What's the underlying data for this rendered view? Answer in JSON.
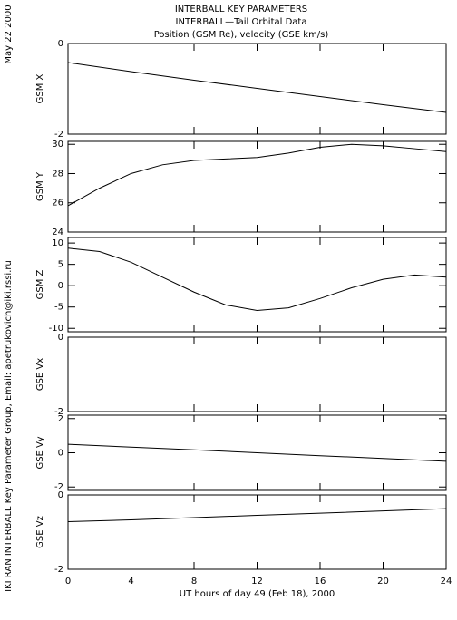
{
  "header": {
    "title_lines": [
      "INTERBALL KEY PARAMETERS",
      "INTERBALL—Tail Orbital Data",
      "Position (GSM Re), velocity (GSE km/s)"
    ],
    "date": "May 22 2000",
    "credit": "IKI RAN INTERBALL Key Parameter Group, Email: apetrukovich@iki.rssi.ru"
  },
  "chart_data": [
    {
      "type": "line",
      "ylabel": "GSM X",
      "ylim": [
        -2,
        0
      ],
      "yticks": [
        -2,
        0
      ],
      "xlim": [
        0,
        24
      ],
      "xticks": [
        0,
        4,
        8,
        12,
        16,
        20,
        24
      ],
      "color": "#000000",
      "x": [
        0,
        4,
        8,
        12,
        16,
        20,
        24
      ],
      "values": [
        -0.42,
        -0.62,
        -0.81,
        -0.99,
        -1.17,
        -1.35,
        -1.52
      ]
    },
    {
      "type": "line",
      "ylabel": "GSM Y",
      "ylim": [
        24,
        30.2
      ],
      "yticks": [
        24,
        26,
        28,
        30
      ],
      "xlim": [
        0,
        24
      ],
      "xticks": [
        0,
        4,
        8,
        12,
        16,
        20,
        24
      ],
      "color": "#000000",
      "x": [
        0,
        2,
        4,
        6,
        8,
        10,
        12,
        14,
        16,
        18,
        20,
        22,
        24
      ],
      "values": [
        25.8,
        27,
        28,
        28.6,
        28.9,
        29,
        29.1,
        29.4,
        29.8,
        30,
        29.9,
        29.7,
        29.5
      ]
    },
    {
      "type": "line",
      "ylabel": "GSM Z",
      "ylim": [
        -10.8,
        11.3
      ],
      "yticks": [
        -10,
        -5,
        0,
        5,
        10
      ],
      "xlim": [
        0,
        24
      ],
      "xticks": [
        0,
        4,
        8,
        12,
        16,
        20,
        24
      ],
      "color": "#000000",
      "x": [
        0,
        2,
        4,
        6,
        8,
        10,
        12,
        14,
        16,
        18,
        20,
        22,
        24
      ],
      "values": [
        8.8,
        8,
        5.5,
        2,
        -1.5,
        -4.5,
        -5.8,
        -5.2,
        -3,
        -0.5,
        1.5,
        2.5,
        2
      ]
    },
    {
      "type": "line",
      "ylabel": "GSE Vx",
      "ylim": [
        -2,
        0
      ],
      "yticks": [
        -2,
        0
      ],
      "xlim": [
        0,
        24
      ],
      "xticks": [
        0,
        4,
        8,
        12,
        16,
        20,
        24
      ]
    },
    {
      "type": "line",
      "ylabel": "GSE Vy",
      "ylim": [
        -2.2,
        2.2
      ],
      "yticks": [
        -2,
        0,
        2
      ],
      "xlim": [
        0,
        24
      ],
      "xticks": [
        0,
        4,
        8,
        12,
        16,
        20,
        24
      ],
      "color": "#000000",
      "x": [
        0,
        4,
        8,
        12,
        16,
        20,
        24
      ],
      "values": [
        0.5,
        0.33,
        0.17,
        0,
        -0.17,
        -0.33,
        -0.5
      ]
    },
    {
      "type": "line",
      "ylabel": "GSE Vz",
      "ylim": [
        -2,
        0
      ],
      "yticks": [
        -2,
        0
      ],
      "xlim": [
        0,
        24
      ],
      "xticks": [
        0,
        4,
        8,
        12,
        16,
        20,
        24
      ],
      "color": "#000000",
      "x": [
        0,
        4,
        8,
        12,
        16,
        20,
        24
      ],
      "values": [
        -0.72,
        -0.67,
        -0.61,
        -0.55,
        -0.49,
        -0.43,
        -0.37
      ],
      "xlabel": "UT hours of day  49 (Feb 18), 2000"
    }
  ]
}
